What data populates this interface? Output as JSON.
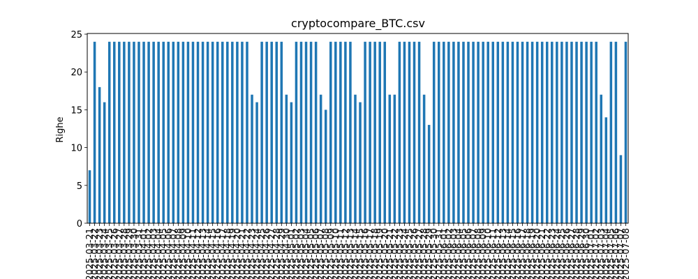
{
  "chart_data": {
    "type": "bar",
    "title": "cryptocompare_BTC.csv",
    "xlabel": "",
    "ylabel": "Righe",
    "ylim": [
      0,
      25
    ],
    "yticks": [
      0,
      5,
      10,
      15,
      20,
      25
    ],
    "grid": false,
    "legend": "none",
    "bar_color": "#1f77b4",
    "categories": [
      "2025-03-21",
      "2025-03-22",
      "2025-03-23",
      "2025-03-24",
      "2025-03-25",
      "2025-03-26",
      "2025-03-27",
      "2025-03-28",
      "2025-03-29",
      "2025-03-30",
      "2025-03-31",
      "2025-04-01",
      "2025-04-02",
      "2025-04-03",
      "2025-04-04",
      "2025-04-05",
      "2025-04-06",
      "2025-04-07",
      "2025-04-08",
      "2025-04-09",
      "2025-04-10",
      "2025-04-11",
      "2025-04-12",
      "2025-04-13",
      "2025-04-14",
      "2025-04-15",
      "2025-04-16",
      "2025-04-17",
      "2025-04-18",
      "2025-04-19",
      "2025-04-20",
      "2025-04-21",
      "2025-04-22",
      "2025-04-23",
      "2025-04-24",
      "2025-04-25",
      "2025-04-26",
      "2025-04-27",
      "2025-04-28",
      "2025-04-29",
      "2025-04-30",
      "2025-05-01",
      "2025-05-02",
      "2025-05-03",
      "2025-05-04",
      "2025-05-05",
      "2025-05-06",
      "2025-05-07",
      "2025-05-08",
      "2025-05-09",
      "2025-05-10",
      "2025-05-11",
      "2025-05-12",
      "2025-05-13",
      "2025-05-14",
      "2025-05-15",
      "2025-05-16",
      "2025-05-17",
      "2025-05-18",
      "2025-05-19",
      "2025-05-20",
      "2025-05-21",
      "2025-05-22",
      "2025-05-23",
      "2025-05-24",
      "2025-05-25",
      "2025-05-26",
      "2025-05-27",
      "2025-05-28",
      "2025-05-29",
      "2025-05-30",
      "2025-05-31",
      "2025-06-01",
      "2025-06-02",
      "2025-06-03",
      "2025-06-04",
      "2025-06-05",
      "2025-06-06",
      "2025-06-07",
      "2025-06-08",
      "2025-06-09",
      "2025-06-10",
      "2025-06-11",
      "2025-06-12",
      "2025-06-13",
      "2025-06-14",
      "2025-06-15",
      "2025-06-16",
      "2025-06-17",
      "2025-06-18",
      "2025-06-19",
      "2025-06-20",
      "2025-06-21",
      "2025-06-22",
      "2025-06-23",
      "2025-06-24",
      "2025-06-25",
      "2025-06-26",
      "2025-06-27",
      "2025-06-28",
      "2025-06-29",
      "2025-06-30",
      "2025-07-01",
      "2025-07-02",
      "2025-07-03",
      "2025-07-04",
      "2025-07-05",
      "2025-07-06",
      "2025-07-07",
      "2025-07-08"
    ],
    "values": [
      7,
      24,
      18,
      16,
      24,
      24,
      24,
      24,
      24,
      24,
      24,
      24,
      24,
      24,
      24,
      24,
      24,
      24,
      24,
      24,
      24,
      24,
      24,
      24,
      24,
      24,
      24,
      24,
      24,
      24,
      24,
      24,
      24,
      17,
      16,
      24,
      24,
      24,
      24,
      24,
      17,
      16,
      24,
      24,
      24,
      24,
      24,
      17,
      15,
      24,
      24,
      24,
      24,
      24,
      17,
      16,
      24,
      24,
      24,
      24,
      24,
      17,
      17,
      24,
      24,
      24,
      24,
      24,
      17,
      13,
      24,
      24,
      24,
      24,
      24,
      24,
      24,
      24,
      24,
      24,
      24,
      24,
      24,
      24,
      24,
      24,
      24,
      24,
      24,
      24,
      24,
      24,
      24,
      24,
      24,
      24,
      24,
      24,
      24,
      24,
      24,
      24,
      24,
      24,
      17,
      14,
      24,
      24,
      9,
      24
    ],
    "values_note": ""
  }
}
